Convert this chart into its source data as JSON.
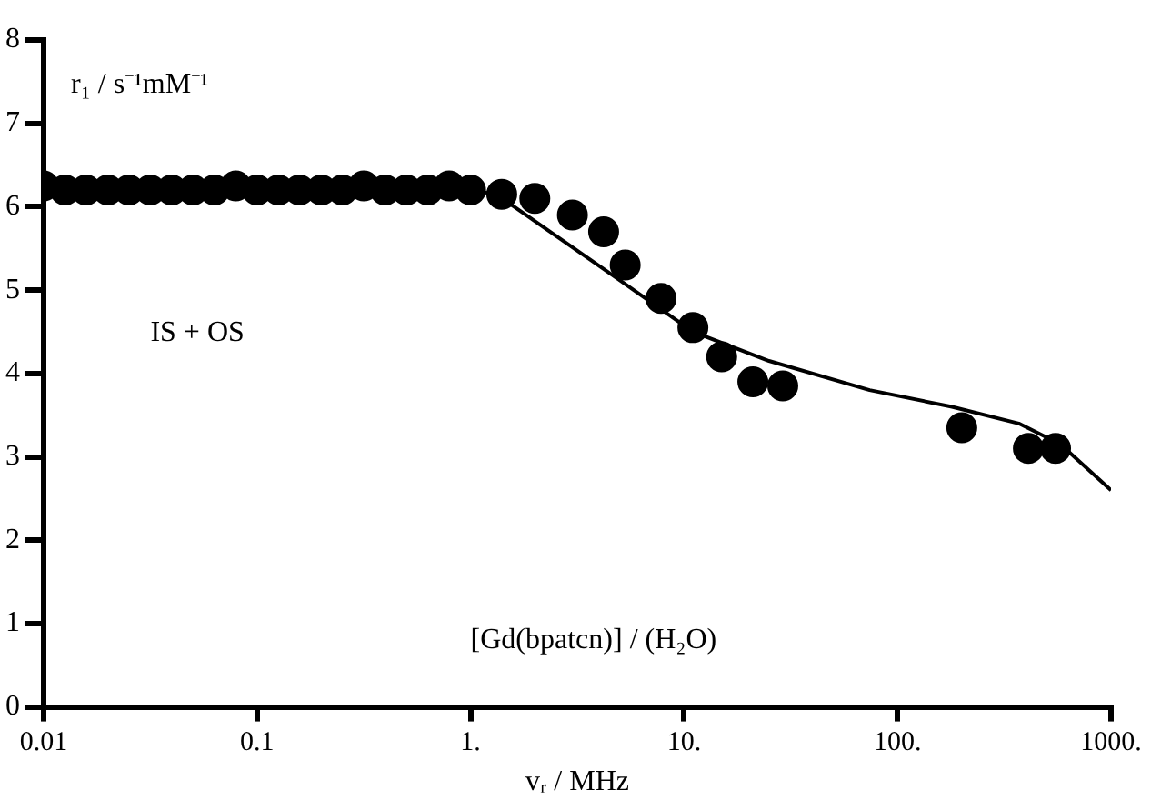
{
  "chart_data": {
    "type": "scatter",
    "xlabel": "vᵣ / MHz",
    "ylabel": "r₁ / s⁻¹mM⁻¹",
    "annotations": [
      "IS + OS",
      "[Gd(bpatcn)] / (H₂O)"
    ],
    "log": "x",
    "xlim": [
      0.01,
      1000
    ],
    "ylim": [
      0,
      8
    ],
    "xticks": [
      {
        "value": 0.01,
        "label": "0.01"
      },
      {
        "value": 0.1,
        "label": "0.1"
      },
      {
        "value": 1,
        "label": "1."
      },
      {
        "value": 10,
        "label": "10."
      },
      {
        "value": 100,
        "label": "100."
      },
      {
        "value": 1000,
        "label": "1000."
      }
    ],
    "yticks": [
      0,
      1,
      2,
      3,
      4,
      5,
      6,
      7,
      8
    ],
    "grid": false,
    "legend": false,
    "marker": "circle",
    "series": [
      {
        "color": "#000000",
        "x": [
          0.01,
          0.0126,
          0.0158,
          0.02,
          0.0251,
          0.0316,
          0.0398,
          0.0501,
          0.0631,
          0.0794,
          0.1,
          0.126,
          0.158,
          0.2,
          0.251,
          0.316,
          0.398,
          0.501,
          0.631,
          0.794,
          1,
          1.4,
          2,
          3,
          4.2,
          5.3,
          7.8,
          11,
          15,
          21,
          29,
          200,
          410,
          550
        ],
        "values": [
          6.25,
          6.2,
          6.2,
          6.2,
          6.2,
          6.2,
          6.2,
          6.2,
          6.2,
          6.25,
          6.2,
          6.2,
          6.2,
          6.2,
          6.2,
          6.25,
          6.2,
          6.2,
          6.2,
          6.25,
          6.2,
          6.15,
          6.1,
          5.9,
          5.7,
          5.3,
          4.9,
          4.55,
          4.2,
          3.9,
          3.85,
          3.35,
          3.1,
          3.1
        ]
      },
      {
        "type": "line",
        "color": "#000000",
        "marker": "none",
        "x": [
          0.01,
          0.1,
          1,
          1.3,
          1.6,
          4.8,
          11,
          25,
          74,
          180,
          370,
          580,
          1000
        ],
        "values": [
          6.2,
          6.2,
          6.2,
          6.15,
          6.0,
          5.15,
          4.5,
          4.15,
          3.8,
          3.6,
          3.4,
          3.15,
          2.6
        ]
      }
    ]
  }
}
